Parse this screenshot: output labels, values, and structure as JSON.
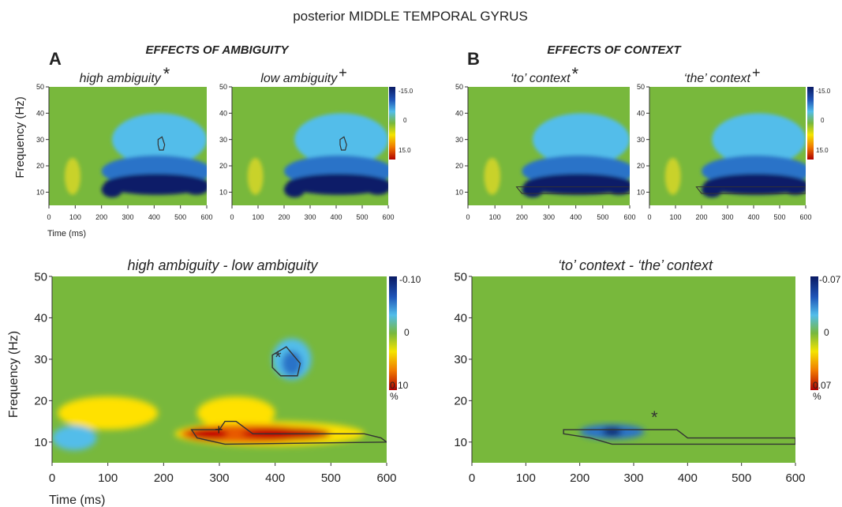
{
  "figure": {
    "title": "posterior MIDDLE TEMPORAL GYRUS",
    "panel_a_letter": "A",
    "panel_b_letter": "B",
    "panel_a_heading": "EFFECTS OF AMBIGUITY",
    "panel_b_heading": "EFFECTS OF CONTEXT",
    "ylabel": "Frequency (Hz)",
    "xlabel": "Time (ms)",
    "pct_unit": "%",
    "star": "*",
    "plus": "+",
    "cb_small_ticks": [
      "-15.0",
      "0",
      "15.0"
    ],
    "cb_amb_ticks": [
      "-0.10",
      "0",
      "0.10"
    ],
    "cb_ctx_ticks": [
      "-0.07",
      "0",
      "0.07"
    ],
    "colors": {
      "green": "#78b83c",
      "lightblue": "#52bdea",
      "blue": "#2a73c8",
      "navy": "#0c1e68",
      "yellow": "#ffe100",
      "red": "#c40000"
    }
  },
  "chart_data": [
    {
      "type": "heatmap",
      "title": "high ambiguity",
      "marker": "*",
      "xlim": [
        0,
        600
      ],
      "ylim": [
        5,
        50
      ],
      "x_ticks": [
        0,
        100,
        200,
        300,
        400,
        500,
        600
      ],
      "y_ticks": [
        10,
        20,
        30,
        40,
        50
      ],
      "colorbar": [
        -15.0,
        0,
        15.0
      ]
    },
    {
      "type": "heatmap",
      "title": "low ambiguity",
      "marker": "+",
      "xlim": [
        0,
        600
      ],
      "ylim": [
        5,
        50
      ],
      "x_ticks": [
        0,
        100,
        200,
        300,
        400,
        500,
        600
      ],
      "y_ticks": [
        10,
        20,
        30,
        40,
        50
      ],
      "colorbar": [
        -15.0,
        0,
        15.0
      ]
    },
    {
      "type": "heatmap",
      "title": "‘to’ context",
      "marker": "*",
      "xlim": [
        0,
        600
      ],
      "ylim": [
        5,
        50
      ],
      "x_ticks": [
        0,
        100,
        200,
        300,
        400,
        500,
        600
      ],
      "y_ticks": [
        10,
        20,
        30,
        40,
        50
      ],
      "colorbar": [
        -15.0,
        0,
        15.0
      ]
    },
    {
      "type": "heatmap",
      "title": "‘the’ context",
      "marker": "+",
      "xlim": [
        0,
        600
      ],
      "ylim": [
        5,
        50
      ],
      "x_ticks": [
        0,
        100,
        200,
        300,
        400,
        500,
        600
      ],
      "y_ticks": [
        10,
        20,
        30,
        40,
        50
      ],
      "colorbar": [
        -15.0,
        0,
        15.0
      ]
    },
    {
      "type": "heatmap",
      "title": "high ambiguity - low ambiguity",
      "xlim": [
        0,
        600
      ],
      "ylim": [
        5,
        50
      ],
      "x_ticks": [
        0,
        100,
        200,
        300,
        400,
        500,
        600
      ],
      "y_ticks": [
        10,
        20,
        30,
        40,
        50
      ],
      "xlabel": "Time (ms)",
      "ylabel": "Frequency (Hz)",
      "colorbar": [
        -0.1,
        0,
        0.1
      ],
      "colorbar_unit": "%",
      "significant_clusters": [
        {
          "marker": "*",
          "time_range_ms": [
            390,
            450
          ],
          "freq_range_hz": [
            27,
            32
          ]
        },
        {
          "marker": "+",
          "time_range_ms": [
            260,
            600
          ],
          "freq_range_hz": [
            10,
            15
          ]
        }
      ]
    },
    {
      "type": "heatmap",
      "title": "‘to’ context - ‘the’ context",
      "xlim": [
        0,
        600
      ],
      "ylim": [
        5,
        50
      ],
      "x_ticks": [
        0,
        100,
        200,
        300,
        400,
        500,
        600
      ],
      "y_ticks": [
        10,
        20,
        30,
        40,
        50
      ],
      "colorbar": [
        -0.07,
        0,
        0.07
      ],
      "colorbar_unit": "%",
      "significant_clusters": [
        {
          "marker": "*",
          "time_range_ms": [
            170,
            600
          ],
          "freq_range_hz": [
            9,
            13
          ]
        }
      ]
    }
  ]
}
